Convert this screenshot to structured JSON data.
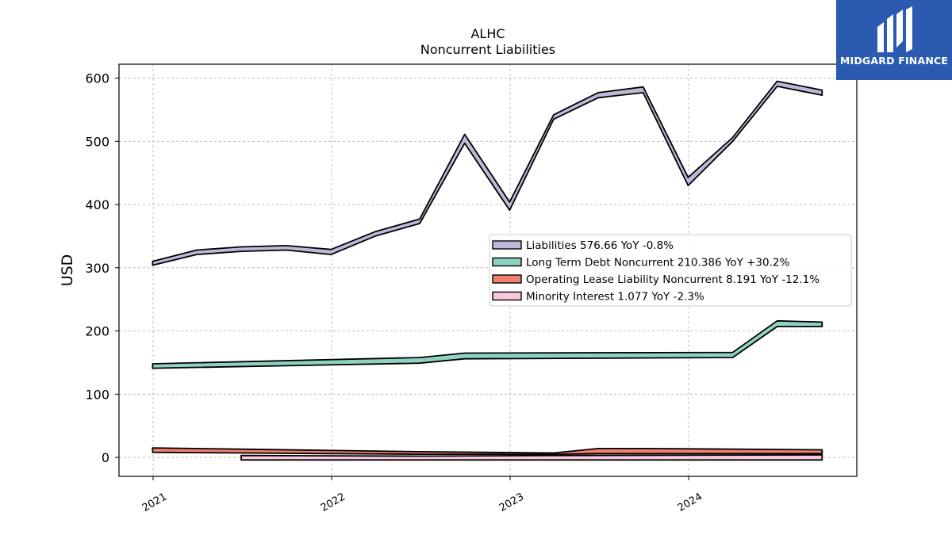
{
  "brand": {
    "name": "MIDGARD FINANCE",
    "accent": "#2b5bb0"
  },
  "chart_data": {
    "type": "area",
    "title": "ALHC",
    "subtitle": "Noncurrent  Liabilities",
    "xlabel": "",
    "ylabel": "USD",
    "ylim": [
      -30,
      622
    ],
    "yticks": [
      0,
      100,
      200,
      300,
      400,
      500,
      600
    ],
    "xticks": [
      "2021",
      "2022",
      "2023",
      "2024"
    ],
    "grid": true,
    "legend": "center-right",
    "series": [
      {
        "name": "Liabilities",
        "legend_label": "Liabilities  576.66 YoY -0.8%",
        "color": "#bcb8d8",
        "x": [
          "2020-12-31",
          "2021-03-31",
          "2021-06-30",
          "2021-09-30",
          "2021-12-31",
          "2022-03-31",
          "2022-06-30",
          "2022-09-30",
          "2022-12-31",
          "2023-03-31",
          "2023-06-30",
          "2023-09-30",
          "2023-12-31",
          "2024-03-31",
          "2024-06-30",
          "2024-09-30"
        ],
        "lower": [
          304,
          321,
          326,
          328,
          321,
          350,
          370,
          497,
          391,
          535,
          569,
          577,
          430,
          500,
          587,
          573
        ],
        "upper": [
          310,
          328,
          333,
          335,
          329,
          357,
          377,
          511,
          404,
          542,
          577,
          586,
          443,
          506,
          595,
          581
        ]
      },
      {
        "name": "Long Term Debt Noncurrent",
        "legend_label": "Long Term Debt Noncurrent  210.386 YoY +30.2%",
        "color": "#8ed3c2",
        "x": [
          "2020-12-31",
          "2022-06-30",
          "2022-09-30",
          "2024-03-31",
          "2024-06-30",
          "2024-09-30"
        ],
        "lower": [
          141,
          149,
          156,
          158,
          207,
          207
        ],
        "upper": [
          148,
          158,
          165,
          166,
          216,
          214
        ]
      },
      {
        "name": "Operating Lease Liability Noncurrent",
        "legend_label": "Operating Lease Liability Noncurrent  8.191 YoY -12.1%",
        "color": "#f08070",
        "x": [
          "2020-12-31",
          "2021-06-30",
          "2022-06-30",
          "2023-03-31",
          "2023-06-30",
          "2023-09-30",
          "2024-09-30"
        ],
        "lower": [
          8,
          7,
          5,
          5,
          6,
          6,
          6
        ],
        "upper": [
          15,
          13,
          9,
          7,
          14,
          14,
          12
        ]
      },
      {
        "name": "Minority Interest",
        "legend_label": "Minority Interest  1.077 YoY -2.3%",
        "color": "#f8c8dc",
        "x": [
          "2021-06-30",
          "2022-06-30",
          "2023-03-31",
          "2024-09-30"
        ],
        "lower": [
          -4,
          -4,
          -4,
          -4
        ],
        "upper": [
          3,
          2,
          3,
          4
        ]
      }
    ]
  }
}
